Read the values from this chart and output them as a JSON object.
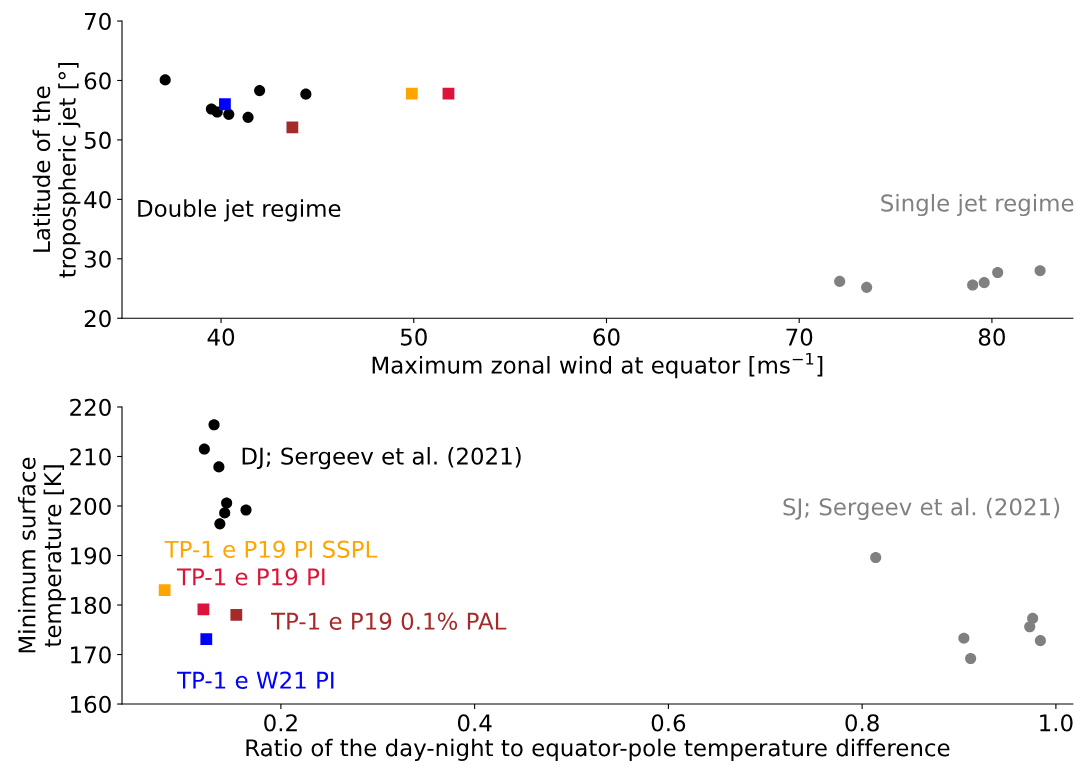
{
  "chart_data": [
    {
      "type": "scatter",
      "xlabel": "Maximum zonal wind at equator [ms$^{−1}$]",
      "ylabel": "Latitude of the\ntropospheric jet [°]",
      "xlim": [
        34.86,
        84.2
      ],
      "xticks": [
        40,
        50,
        60,
        70,
        80
      ],
      "ylim": [
        20,
        70
      ],
      "yticks": [
        20,
        30,
        40,
        50,
        60,
        70
      ],
      "grid": false,
      "legend": false,
      "series": [
        {
          "name": "Double jet regime",
          "color": "#000000",
          "marker": "circle",
          "x": [
            37.1,
            39.5,
            39.8,
            40.4,
            41.4,
            42.0,
            44.4
          ],
          "values": [
            60.1,
            55.2,
            54.7,
            54.3,
            53.8,
            58.3,
            57.7
          ]
        },
        {
          "name": "Single jet regime",
          "color": "#808080",
          "marker": "circle",
          "x": [
            72.1,
            73.5,
            79.0,
            79.6,
            80.3,
            82.5
          ],
          "values": [
            26.2,
            25.2,
            25.6,
            26.0,
            27.7,
            28.0
          ]
        },
        {
          "color": "#ffa500",
          "marker": "square",
          "x": [
            49.9
          ],
          "values": [
            57.8
          ]
        },
        {
          "color": "#dc143c",
          "marker": "square",
          "x": [
            51.8
          ],
          "values": [
            57.8
          ]
        },
        {
          "color": "#a52a2a",
          "marker": "square",
          "x": [
            43.7
          ],
          "values": [
            52.1
          ]
        },
        {
          "color": "#0000ff",
          "marker": "square",
          "x": [
            40.2
          ],
          "values": [
            56.0
          ]
        }
      ]
    },
    {
      "type": "scatter",
      "xlabel": "Ratio of the day-night to equator-pole temperature difference",
      "ylabel": "Minimum surface\ntemperature [K]",
      "xlim": [
        0.036,
        1.0175
      ],
      "xticks": [
        0.2,
        0.4,
        0.6,
        0.8,
        {
          "value": 1.0,
          "label": "1.0"
        }
      ],
      "ylim": [
        160,
        220
      ],
      "yticks": [
        160,
        170,
        180,
        190,
        200,
        210,
        220
      ],
      "grid": false,
      "legend": false,
      "series": [
        {
          "name": "DJ; Sergeev et al. (2021)",
          "color": "#000000",
          "marker": "circle",
          "x": [
            0.131,
            0.121,
            0.136,
            0.144,
            0.142,
            0.164,
            0.137
          ],
          "values": [
            216.4,
            211.5,
            207.9,
            200.6,
            198.6,
            199.2,
            196.4
          ]
        },
        {
          "name": "SJ; Sergeev et al. (2021)",
          "color": "#808080",
          "marker": "circle",
          "x": [
            0.814,
            0.905,
            0.912,
            0.976,
            0.973,
            0.984
          ],
          "values": [
            189.6,
            173.3,
            169.2,
            177.3,
            175.6,
            172.8
          ]
        },
        {
          "name": "TP-1 e P19 PI SSPL",
          "color": "#ffa500",
          "marker": "square",
          "x": [
            0.08
          ],
          "values": [
            183.0
          ]
        },
        {
          "name": "TP-1 e P19 PI",
          "color": "#dc143c",
          "marker": "square",
          "x": [
            0.12
          ],
          "values": [
            179.1
          ]
        },
        {
          "name": "TP-1 e P19 0.1% PAL",
          "color": "#a52a2a",
          "marker": "square",
          "x": [
            0.154
          ],
          "values": [
            178.0
          ]
        },
        {
          "name": "TP-1 e W21 PI",
          "color": "#0000ff",
          "marker": "square",
          "x": [
            0.123
          ],
          "values": [
            173.1
          ]
        }
      ]
    }
  ]
}
